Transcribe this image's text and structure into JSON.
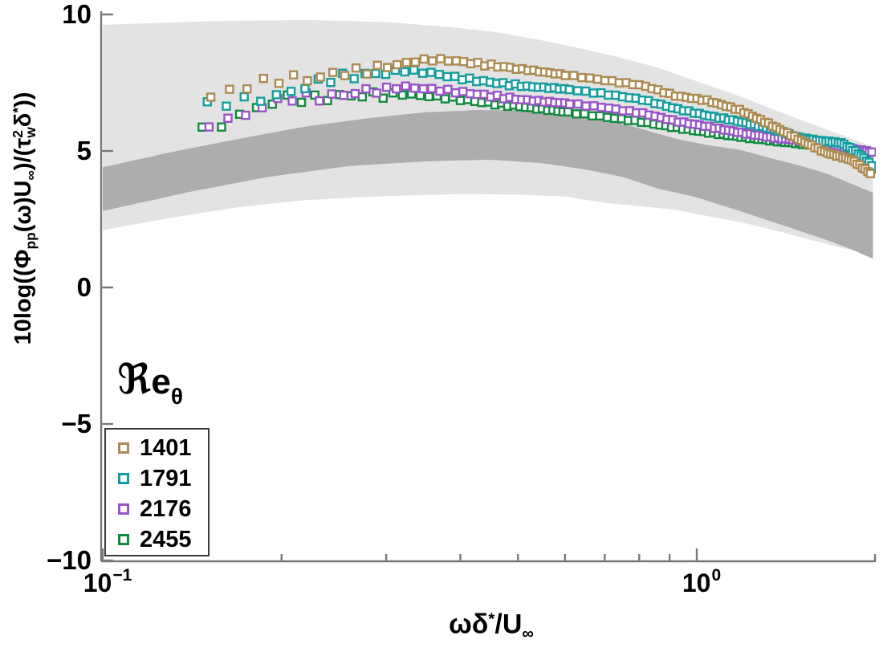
{
  "figure": {
    "kind": "matlab-style scatter figure, no title, white background",
    "axis_color": "#787878",
    "text_color": "#000000"
  },
  "chart_data": {
    "type": "scatter",
    "title": "",
    "xlabel": "ωδ*/U∞",
    "ylabel": "10log((Φpp(ω)U∞)/(τw²δ*))",
    "xscale": "log",
    "xlim": [
      0.1,
      1.98
    ],
    "ylim": [
      -10,
      10
    ],
    "grid": false,
    "xlabel_parts": [
      {
        "t": "ωδ"
      },
      {
        "t": "*",
        "pos": "sup"
      },
      {
        "t": "/U"
      },
      {
        "t": "∞",
        "pos": "sub"
      }
    ],
    "ylabel_parts": [
      {
        "t": "10log(("
      },
      {
        "t": "Φ"
      },
      {
        "t": "pp",
        "pos": "sub"
      },
      {
        "t": "(ω)U"
      },
      {
        "t": "∞",
        "pos": "sub"
      },
      {
        "t": ")/("
      },
      {
        "t": "τ"
      },
      {
        "pos": "stack",
        "top": "2",
        "bot": "w"
      },
      {
        "t": "δ"
      },
      {
        "t": "*",
        "pos": "sup"
      },
      {
        "t": "))"
      }
    ],
    "axes": {
      "y": {
        "tick_values": [
          10,
          5,
          0,
          -5,
          -10
        ],
        "tick_labels": [
          "10",
          "5",
          "0",
          "−5",
          "−10"
        ]
      },
      "x": {
        "major_ticks": [
          {
            "value": 0.1,
            "base": "10",
            "exp": "−1"
          },
          {
            "value": 1.0,
            "base": "10",
            "exp": "0"
          }
        ],
        "minor_tick_values": [
          0.2,
          0.3,
          0.4,
          0.5,
          0.6,
          0.7,
          0.8,
          0.9,
          2.0
        ]
      }
    },
    "legend": {
      "title": "ℜeθ",
      "title_parts": [
        {
          "t": "ℜ",
          "cls": "frakR"
        },
        {
          "t": "e",
          "cls": "bigE"
        },
        {
          "t": "θ",
          "pos": "sub"
        }
      ],
      "position": "lower-left",
      "entries": [
        {
          "label": "1401",
          "color": "#ad8a52"
        },
        {
          "label": "1791",
          "color": "#149da0"
        },
        {
          "label": "2176",
          "color": "#9a53c8"
        },
        {
          "label": "2455",
          "color": "#108a3e"
        }
      ]
    },
    "bands": [
      {
        "name": "band-light",
        "color": "#e3e3e3",
        "top": [
          [
            0.1,
            9.62
          ],
          [
            0.15,
            9.75
          ],
          [
            0.22,
            9.8
          ],
          [
            0.3,
            9.72
          ],
          [
            0.38,
            9.55
          ],
          [
            0.46,
            9.35
          ],
          [
            0.55,
            9.05
          ],
          [
            0.65,
            8.72
          ],
          [
            0.75,
            8.4
          ],
          [
            0.86,
            8.05
          ],
          [
            1.0,
            7.55
          ],
          [
            1.15,
            7.1
          ],
          [
            1.3,
            6.65
          ],
          [
            1.45,
            6.25
          ],
          [
            1.6,
            5.9
          ],
          [
            1.8,
            5.5
          ],
          [
            1.98,
            5.15
          ]
        ],
        "bottom": [
          [
            0.1,
            2.1
          ],
          [
            0.13,
            2.55
          ],
          [
            0.17,
            2.95
          ],
          [
            0.22,
            3.2
          ],
          [
            0.3,
            3.35
          ],
          [
            0.4,
            3.42
          ],
          [
            0.5,
            3.4
          ],
          [
            0.6,
            3.33
          ],
          [
            0.7,
            3.1
          ],
          [
            0.8,
            2.98
          ],
          [
            0.92,
            2.85
          ],
          [
            1.05,
            2.6
          ],
          [
            1.18,
            2.4
          ],
          [
            1.35,
            2.1
          ],
          [
            1.55,
            1.75
          ],
          [
            1.75,
            1.45
          ],
          [
            1.98,
            1.25
          ]
        ]
      },
      {
        "name": "band-dark",
        "color": "#adadad",
        "top": [
          [
            0.1,
            4.4
          ],
          [
            0.13,
            4.95
          ],
          [
            0.17,
            5.45
          ],
          [
            0.22,
            5.9
          ],
          [
            0.28,
            6.2
          ],
          [
            0.35,
            6.42
          ],
          [
            0.43,
            6.5
          ],
          [
            0.53,
            6.48
          ],
          [
            0.6,
            6.38
          ],
          [
            0.7,
            6.15
          ],
          [
            0.81,
            5.8
          ],
          [
            0.92,
            5.45
          ],
          [
            1.05,
            5.2
          ],
          [
            1.18,
            5.05
          ],
          [
            1.35,
            4.7
          ],
          [
            1.5,
            4.45
          ],
          [
            1.65,
            4.18
          ],
          [
            1.82,
            3.8
          ],
          [
            1.98,
            3.47
          ]
        ],
        "bottom": [
          [
            0.1,
            2.8
          ],
          [
            0.14,
            3.5
          ],
          [
            0.19,
            4.05
          ],
          [
            0.26,
            4.45
          ],
          [
            0.35,
            4.62
          ],
          [
            0.45,
            4.68
          ],
          [
            0.55,
            4.55
          ],
          [
            0.65,
            4.32
          ],
          [
            0.75,
            4.05
          ],
          [
            0.86,
            3.62
          ],
          [
            1.0,
            3.3
          ],
          [
            1.18,
            2.8
          ],
          [
            1.35,
            2.38
          ],
          [
            1.5,
            2.05
          ],
          [
            1.65,
            1.75
          ],
          [
            1.82,
            1.4
          ],
          [
            1.98,
            1.05
          ]
        ]
      }
    ],
    "series": [
      {
        "name": "2455",
        "reynolds": 2455,
        "color": "#108a3e",
        "marker": "open-square",
        "jitter_seed": 1.3,
        "points": [
          [
            0.147,
            5.74
          ],
          [
            0.157,
            5.94
          ],
          [
            0.169,
            6.26
          ],
          [
            0.18,
            6.56
          ],
          [
            0.192,
            6.76
          ],
          [
            0.203,
            6.94
          ],
          [
            0.225,
            6.9
          ],
          [
            0.25,
            7.0
          ],
          [
            0.28,
            7.05
          ],
          [
            0.321,
            7.09
          ],
          [
            0.384,
            6.94
          ],
          [
            0.434,
            6.79
          ],
          [
            0.507,
            6.62
          ],
          [
            0.594,
            6.44
          ],
          [
            0.694,
            6.26
          ],
          [
            0.811,
            6.06
          ],
          [
            0.918,
            5.86
          ],
          [
            1.04,
            5.68
          ],
          [
            1.18,
            5.52
          ],
          [
            1.33,
            5.38
          ],
          [
            1.5,
            5.26
          ],
          [
            1.65,
            5.16
          ],
          [
            1.8,
            5.0
          ],
          [
            1.9,
            4.62
          ],
          [
            1.98,
            4.3
          ]
        ]
      },
      {
        "name": "2176",
        "reynolds": 2176,
        "color": "#9a53c8",
        "marker": "open-square",
        "jitter_seed": 4.2,
        "points": [
          [
            0.151,
            6.0
          ],
          [
            0.163,
            6.12
          ],
          [
            0.175,
            6.35
          ],
          [
            0.188,
            6.68
          ],
          [
            0.201,
            6.9
          ],
          [
            0.214,
            7.0
          ],
          [
            0.235,
            6.95
          ],
          [
            0.26,
            7.1
          ],
          [
            0.29,
            7.25
          ],
          [
            0.321,
            7.35
          ],
          [
            0.384,
            7.2
          ],
          [
            0.434,
            7.06
          ],
          [
            0.507,
            6.88
          ],
          [
            0.594,
            6.76
          ],
          [
            0.694,
            6.6
          ],
          [
            0.811,
            6.38
          ],
          [
            0.918,
            6.1
          ],
          [
            1.04,
            5.9
          ],
          [
            1.18,
            5.68
          ],
          [
            1.33,
            5.5
          ],
          [
            1.5,
            5.38
          ],
          [
            1.65,
            5.28
          ],
          [
            1.82,
            5.09
          ],
          [
            1.98,
            4.94
          ]
        ]
      },
      {
        "name": "1791",
        "reynolds": 1791,
        "color": "#149da0",
        "marker": "open-square",
        "jitter_seed": 2.1,
        "points": [
          [
            0.15,
            6.68
          ],
          [
            0.166,
            6.82
          ],
          [
            0.18,
            6.88
          ],
          [
            0.195,
            7.0
          ],
          [
            0.21,
            7.2
          ],
          [
            0.224,
            7.44
          ],
          [
            0.245,
            7.68
          ],
          [
            0.28,
            7.8
          ],
          [
            0.321,
            7.95
          ],
          [
            0.36,
            7.85
          ],
          [
            0.384,
            7.72
          ],
          [
            0.434,
            7.56
          ],
          [
            0.507,
            7.38
          ],
          [
            0.594,
            7.28
          ],
          [
            0.694,
            7.1
          ],
          [
            0.811,
            6.88
          ],
          [
            0.918,
            6.56
          ],
          [
            1.04,
            6.3
          ],
          [
            1.18,
            6.08
          ],
          [
            1.33,
            5.82
          ],
          [
            1.5,
            5.47
          ],
          [
            1.65,
            5.35
          ],
          [
            1.75,
            5.3
          ],
          [
            1.86,
            4.95
          ],
          [
            1.98,
            4.44
          ]
        ]
      },
      {
        "name": "1401",
        "reynolds": 1401,
        "color": "#ad8a52",
        "marker": "open-square",
        "jitter_seed": 0.0,
        "points": [
          [
            0.152,
            6.97
          ],
          [
            0.17,
            7.32
          ],
          [
            0.19,
            7.56
          ],
          [
            0.208,
            7.68
          ],
          [
            0.226,
            7.62
          ],
          [
            0.243,
            7.82
          ],
          [
            0.272,
            7.92
          ],
          [
            0.305,
            8.1
          ],
          [
            0.335,
            8.29
          ],
          [
            0.36,
            8.35
          ],
          [
            0.384,
            8.32
          ],
          [
            0.434,
            8.18
          ],
          [
            0.507,
            8.0
          ],
          [
            0.594,
            7.8
          ],
          [
            0.694,
            7.6
          ],
          [
            0.811,
            7.4
          ],
          [
            0.918,
            7.03
          ],
          [
            1.04,
            6.85
          ],
          [
            1.18,
            6.5
          ],
          [
            1.33,
            5.97
          ],
          [
            1.5,
            5.38
          ],
          [
            1.65,
            4.94
          ],
          [
            1.82,
            4.68
          ],
          [
            1.9,
            4.4
          ],
          [
            1.98,
            4.1
          ]
        ]
      }
    ],
    "style": {
      "marker_size_px": 9,
      "marker_stroke_px": 2.4,
      "marker_spacing_x_low": 0.0115,
      "marker_spacing_x_high": 0.02
    }
  }
}
